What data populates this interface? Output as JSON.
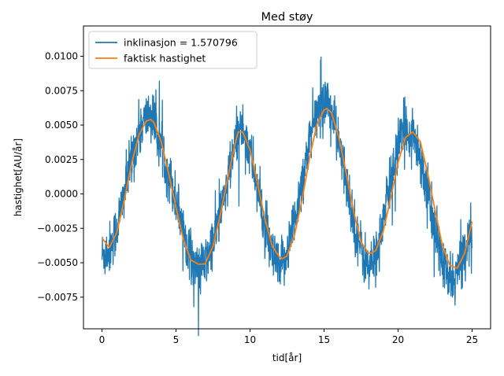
{
  "chart_data": {
    "type": "line",
    "title": "Med støy",
    "xlabel": "tid[år]",
    "ylabel": "hastighet[AU/år]",
    "xlim": [
      -1.25,
      26.25
    ],
    "ylim": [
      -0.0098,
      0.0122
    ],
    "xticks": [
      0,
      5,
      10,
      15,
      20,
      25
    ],
    "xtick_labels": [
      "0",
      "5",
      "10",
      "15",
      "20",
      "25"
    ],
    "yticks": [
      -0.0075,
      -0.005,
      -0.0025,
      0.0,
      0.0025,
      0.005,
      0.0075,
      0.01
    ],
    "ytick_labels": [
      "−0.0075",
      "−0.0050",
      "−0.0025",
      "0.0000",
      "0.0025",
      "0.0050",
      "0.0075",
      "0.0100"
    ],
    "grid": false,
    "legend_position": "upper-left",
    "series": [
      {
        "name": "inklinasjon = 1.570796",
        "color": "#1f77b4",
        "kind": "noisy",
        "x": [
          0,
          0.5,
          1,
          1.5,
          2,
          2.5,
          3,
          3.3,
          3.5,
          4,
          4.5,
          5,
          5.5,
          6,
          6.5,
          7,
          7.5,
          8,
          8.5,
          9,
          9.2,
          9.5,
          10,
          10.5,
          11,
          11.5,
          12,
          12.5,
          13,
          13.5,
          14,
          14.5,
          15,
          15.2,
          15.5,
          16,
          16.5,
          17,
          17.5,
          18,
          18.5,
          19,
          19.5,
          20,
          20.5,
          21,
          21.5,
          22,
          22.5,
          23,
          23.5,
          24,
          24.5,
          25
        ],
        "y": [
          -0.0045,
          -0.004,
          -0.0025,
          0.0,
          0.0025,
          0.0045,
          0.0055,
          0.0058,
          0.0052,
          0.0035,
          0.0015,
          -0.0005,
          -0.0025,
          -0.0045,
          -0.0058,
          -0.005,
          -0.0035,
          -0.0015,
          0.001,
          0.0035,
          0.0047,
          0.0048,
          0.003,
          0.0005,
          -0.0025,
          -0.0045,
          -0.0058,
          -0.004,
          -0.002,
          0.001,
          0.0035,
          0.0058,
          0.007,
          0.0068,
          0.006,
          0.0035,
          0.001,
          -0.002,
          -0.004,
          -0.0055,
          -0.0045,
          -0.002,
          0.001,
          0.0035,
          0.0048,
          0.0045,
          0.0028,
          0.0,
          -0.0028,
          -0.005,
          -0.0065,
          -0.0058,
          -0.004,
          -0.0025
        ]
      },
      {
        "name": "faktisk hastighet",
        "color": "#ff7f0e",
        "kind": "smooth",
        "x": [
          0,
          0.5,
          1,
          1.5,
          2,
          2.5,
          3,
          3.3,
          3.5,
          4,
          4.5,
          5,
          5.5,
          6,
          6.5,
          6.9,
          7,
          7.5,
          8,
          8.5,
          9,
          9.2,
          9.5,
          10,
          10.5,
          11,
          11.5,
          12,
          12.2,
          12.5,
          13,
          13.5,
          14,
          14.5,
          15,
          15.2,
          15.5,
          16,
          16.5,
          17,
          17.5,
          18,
          18.2,
          18.5,
          19,
          19.5,
          20,
          20.5,
          21,
          21.5,
          22,
          22.5,
          23,
          23.5,
          24,
          24.5,
          25
        ],
        "y": [
          -0.0032,
          -0.0039,
          -0.0028,
          -0.0005,
          0.0022,
          0.0043,
          0.0053,
          0.0054,
          0.0052,
          0.0038,
          0.0015,
          -0.001,
          -0.0033,
          -0.0048,
          -0.0051,
          -0.0051,
          -0.005,
          -0.0038,
          -0.0015,
          0.0012,
          0.0037,
          0.0045,
          0.0045,
          0.0032,
          0.0008,
          -0.0018,
          -0.0038,
          -0.0046,
          -0.0047,
          -0.0045,
          -0.003,
          -0.0005,
          0.0025,
          0.005,
          0.0061,
          0.0062,
          0.0059,
          0.0041,
          0.0015,
          -0.0013,
          -0.0035,
          -0.0043,
          -0.0043,
          -0.0041,
          -0.0027,
          -0.0003,
          0.0023,
          0.0041,
          0.0045,
          0.0038,
          0.0015,
          -0.0012,
          -0.0038,
          -0.0052,
          -0.0054,
          -0.0043,
          -0.002
        ]
      }
    ]
  }
}
